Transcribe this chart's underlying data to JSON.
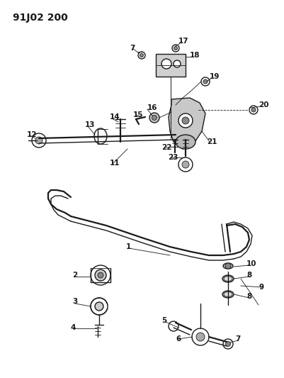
{
  "title": "91J02 200",
  "bg_color": "#ffffff",
  "line_color": "#1a1a1a",
  "title_fontsize": 10,
  "label_fontsize": 7.5,
  "fig_width": 4.01,
  "fig_height": 5.33,
  "dpi": 100
}
